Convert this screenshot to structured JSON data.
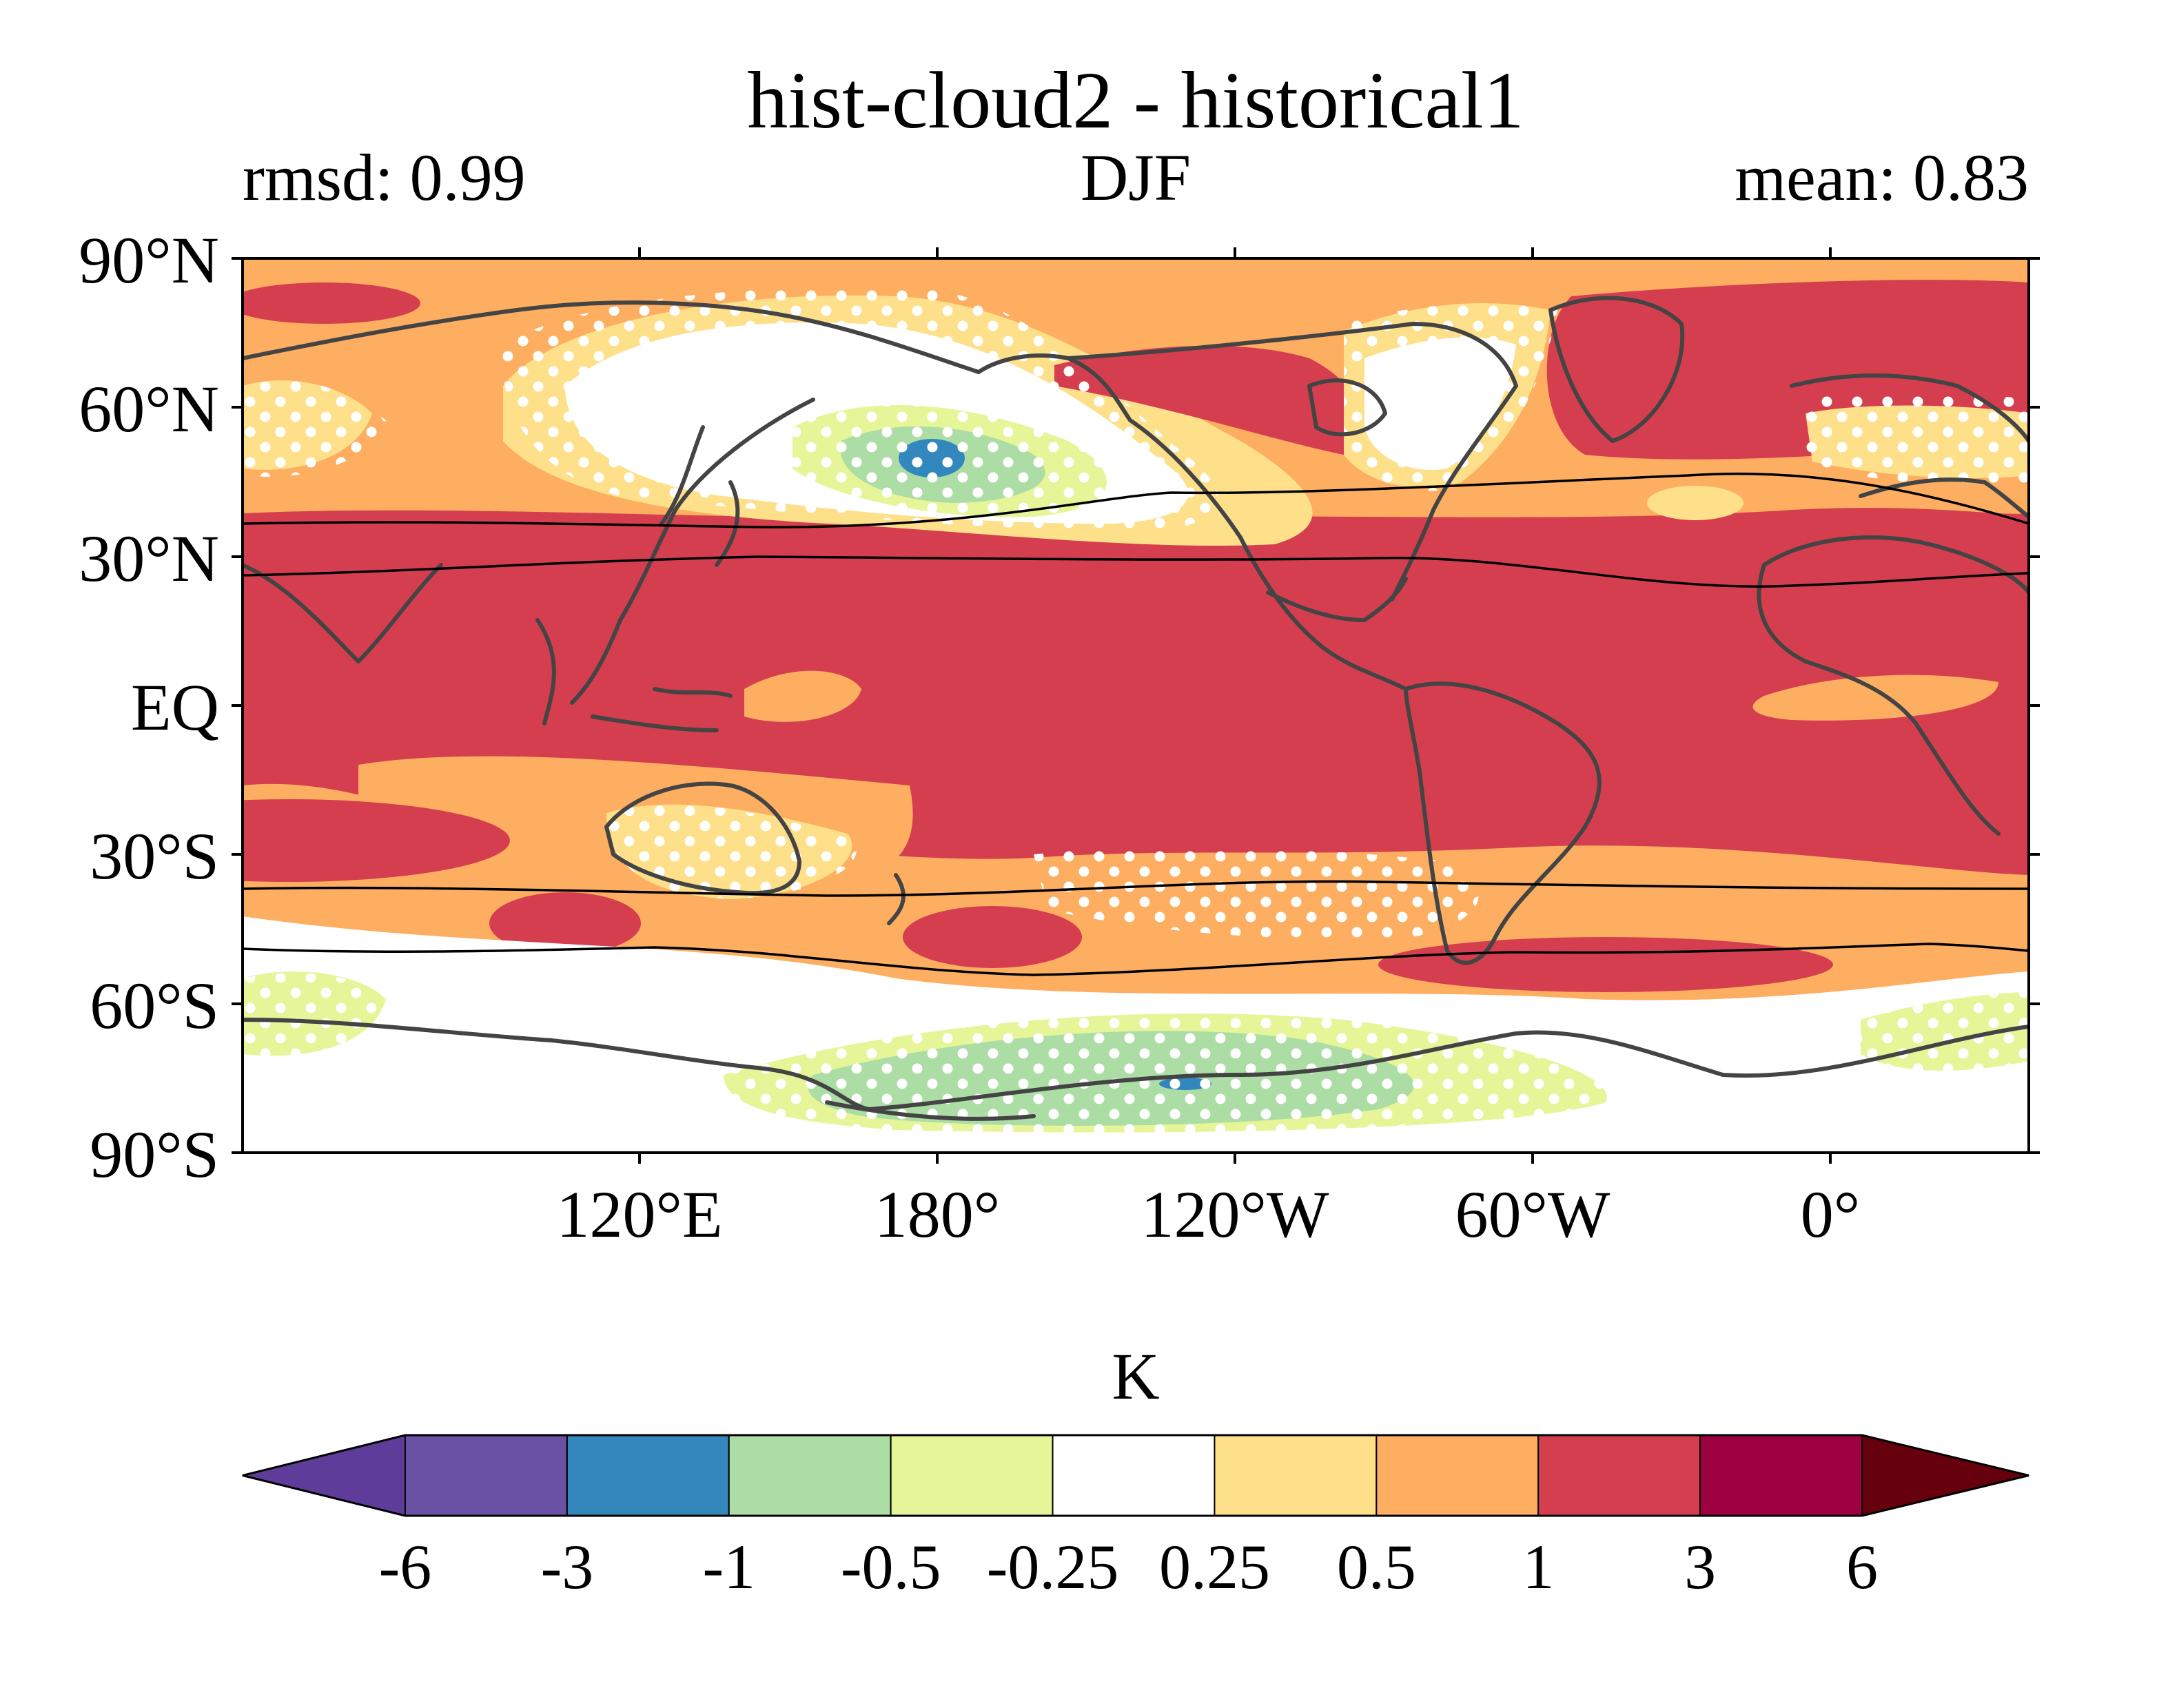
{
  "title": "hist-cloud2 - historical1",
  "subtitle": {
    "left": "rmsd: 0.99",
    "center": "DJF",
    "right": "mean: 0.83"
  },
  "map": {
    "projection": "equirectangular",
    "lon_range": [
      40,
      400
    ],
    "lat_range": [
      -90,
      90
    ],
    "y_tick_labels": [
      "90°N",
      "60°N",
      "30°N",
      "EQ",
      "30°S",
      "60°S",
      "90°S"
    ],
    "x_tick_labels": [
      "120°E",
      "180°",
      "120°W",
      "60°W",
      "0°"
    ],
    "stippling": "white dots mark grid points where the difference is not significant",
    "jet_lines": "black contour lines around 40–50°N/S in both hemispheres",
    "coastline_color": "#444444"
  },
  "colorbar": {
    "label": "K",
    "tick_labels": [
      "-6",
      "-3",
      "-1",
      "-0.5",
      "-0.25",
      "0.25",
      "0.5",
      "1",
      "3",
      "6"
    ],
    "bounds": [
      -6,
      -3,
      -1,
      -0.5,
      -0.25,
      0.25,
      0.5,
      1,
      3,
      6
    ],
    "colors": [
      "#5e3c99",
      "#6a51a3",
      "#3288bd",
      "#abdda4",
      "#e6f598",
      "#ffffff",
      "#fee08b",
      "#fdae61",
      "#d53e4f",
      "#9e0142"
    ],
    "extend_low_color": "#5e3c99",
    "extend_high_color": "#67000d"
  },
  "chart_data": {
    "type": "heatmap",
    "title": "hist-cloud2 - historical1",
    "units": "K",
    "season": "DJF",
    "rmsd": 0.99,
    "mean": 0.83,
    "xlabel": "",
    "ylabel": "",
    "x_ticks": [
      "120°E",
      "180°",
      "120°W",
      "60°W",
      "0°"
    ],
    "y_ticks": [
      "90°N",
      "60°N",
      "30°N",
      "EQ",
      "30°S",
      "60°S",
      "90°S"
    ],
    "regions_approx": [
      {
        "region": "Tropics 30°S–30°N (most longitudes)",
        "value_range_K": [
          1,
          3
        ]
      },
      {
        "region": "North Pacific near 50°N 180°",
        "value_range_K": [
          -3,
          -0.5
        ]
      },
      {
        "region": "North Pacific / Bering Sea 45–70°N",
        "value_range_K": [
          -0.25,
          0.25
        ]
      },
      {
        "region": "North Atlantic / Greenland 60–80°N",
        "value_range_K": [
          1,
          3
        ]
      },
      {
        "region": "Southern Ocean 45–55°S",
        "value_range_K": [
          0.5,
          3
        ]
      },
      {
        "region": "Southern Ocean ~60°S",
        "value_range_K": [
          -0.25,
          0.25
        ]
      },
      {
        "region": "Antarctica 65–80°S near 120°W–180°",
        "value_range_K": [
          -3,
          -0.25
        ]
      }
    ]
  }
}
